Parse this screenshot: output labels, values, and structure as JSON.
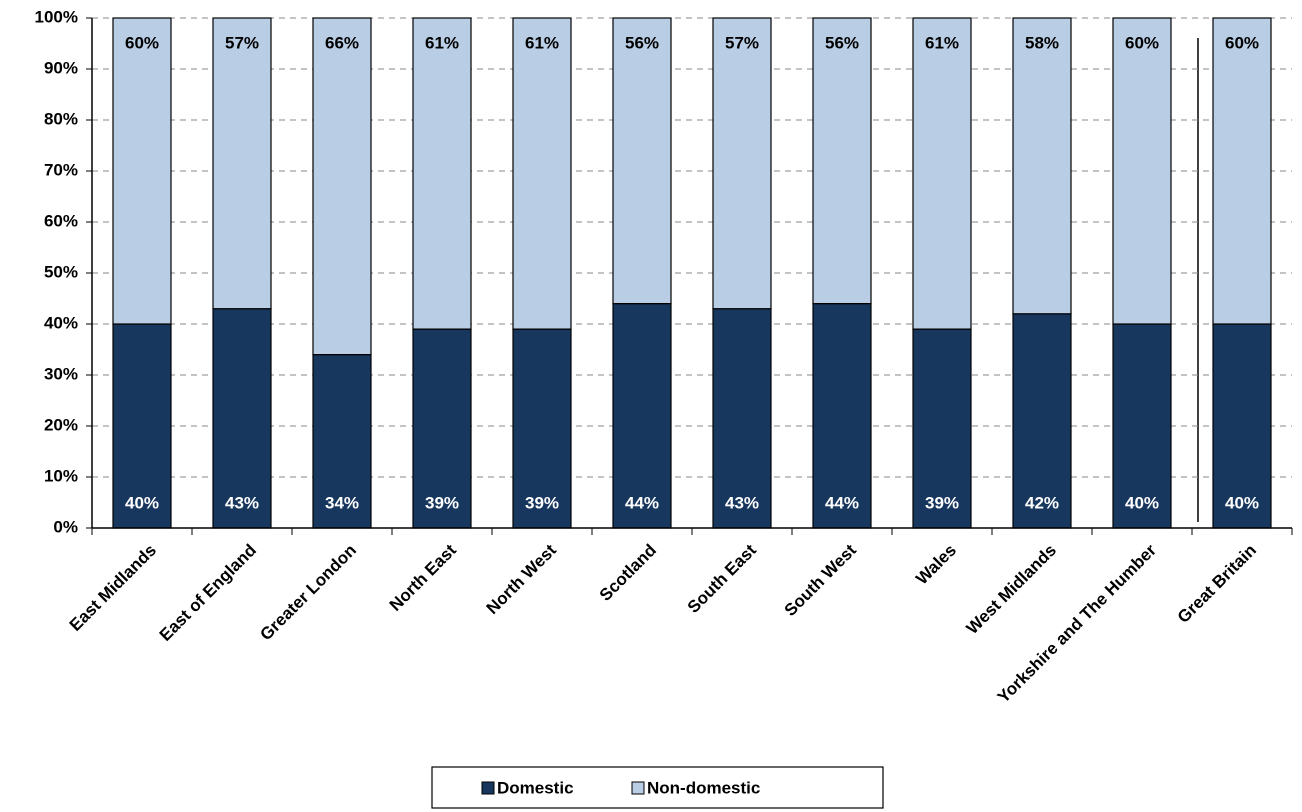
{
  "chart_data": {
    "type": "stacked-bar",
    "categories": [
      "East Midlands",
      "East of England",
      "Greater London",
      "North East",
      "North West",
      "Scotland",
      "South East",
      "South West",
      "Wales",
      "West Midlands",
      "Yorkshire and The Humber",
      "Great Britain"
    ],
    "series": [
      {
        "name": "Domestic",
        "color": "#17375e",
        "values": [
          40,
          43,
          34,
          39,
          39,
          44,
          43,
          44,
          39,
          42,
          40,
          40
        ],
        "value_labels": [
          "40%",
          "43%",
          "34%",
          "39%",
          "39%",
          "44%",
          "43%",
          "44%",
          "39%",
          "42%",
          "40%",
          "40%"
        ]
      },
      {
        "name": "Non-domestic",
        "color": "#b9cde5",
        "values": [
          60,
          57,
          66,
          61,
          61,
          56,
          57,
          56,
          61,
          58,
          60,
          60
        ],
        "value_labels": [
          "60%",
          "57%",
          "66%",
          "61%",
          "61%",
          "56%",
          "57%",
          "56%",
          "61%",
          "58%",
          "60%",
          "60%"
        ]
      }
    ],
    "ylim": [
      0,
      100
    ],
    "yticks": [
      {
        "value": 0,
        "label": "0%"
      },
      {
        "value": 10,
        "label": "10%"
      },
      {
        "value": 20,
        "label": "20%"
      },
      {
        "value": 30,
        "label": "30%"
      },
      {
        "value": 40,
        "label": "40%"
      },
      {
        "value": 50,
        "label": "50%"
      },
      {
        "value": 60,
        "label": "60%"
      },
      {
        "value": 70,
        "label": "70%"
      },
      {
        "value": 80,
        "label": "80%"
      },
      {
        "value": 90,
        "label": "90%"
      },
      {
        "value": 100,
        "label": "100%"
      }
    ],
    "grid": true,
    "legend": "bottom"
  }
}
